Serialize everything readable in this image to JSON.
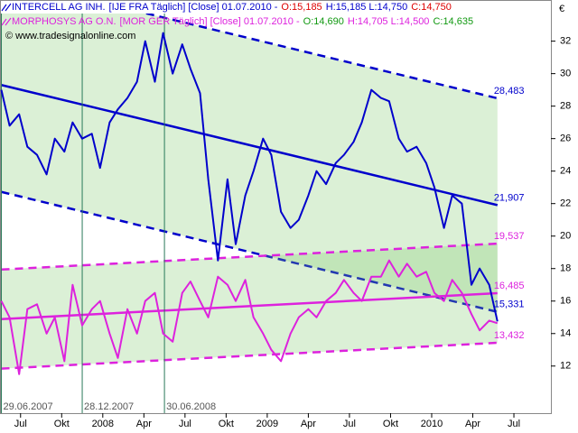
{
  "chart_data": {
    "type": "line",
    "copyright": "© www.tradesignalonline.com",
    "unit": "€",
    "x": [
      6.1,
      6.7,
      7.4,
      8.0,
      8.7,
      9.4,
      10.0,
      10.7,
      11.3,
      12.0,
      12.7,
      13.3,
      14.0,
      14.6,
      15.3,
      16.0,
      16.6,
      17.3,
      17.9,
      18.6,
      19.3,
      19.9,
      20.6,
      21.2,
      21.9,
      22.6,
      23.2,
      23.9,
      24.5,
      25.2,
      25.8,
      26.5,
      27.2,
      27.8,
      28.5,
      29.1,
      29.8,
      30.5,
      31.1,
      31.8,
      32.4,
      33.1,
      33.8,
      34.4,
      35.1,
      35.7,
      36.4,
      37.1,
      37.7,
      38.4,
      39.0,
      39.7,
      40.4,
      41.0,
      41.7,
      42.3
    ],
    "series": [
      {
        "name": "INTERCELL AG INH.",
        "color": "#0000cc",
        "details": [
          {
            "text": "[IJE FRA  Täglich] [Close] 01.07.2010 -",
            "color": "#0000cc"
          },
          {
            "text": "O:15,185",
            "color": "#dd0000"
          },
          {
            "text": "H:15,185 L:14,750",
            "color": "#0000cc"
          },
          {
            "text": "C:14,750",
            "color": "#dd0000"
          }
        ],
        "values": [
          29.0,
          26.8,
          27.5,
          25.5,
          25.0,
          23.8,
          26.0,
          25.2,
          27.0,
          26.0,
          26.3,
          24.2,
          27.0,
          27.8,
          28.5,
          29.5,
          32.0,
          29.5,
          32.5,
          30.0,
          31.8,
          30.3,
          28.8,
          23.5,
          18.5,
          23.5,
          19.5,
          22.5,
          24.0,
          26.0,
          25.0,
          21.5,
          20.5,
          21.0,
          22.5,
          24.0,
          23.2,
          24.5,
          25.0,
          25.8,
          27.0,
          29.0,
          28.5,
          28.3,
          26.0,
          25.2,
          25.5,
          24.5,
          23.0,
          20.5,
          22.5,
          22.0,
          17.0,
          18.0,
          17.0,
          14.75
        ]
      },
      {
        "name": "MORPHOSYS AG O.N.",
        "color": "#dd22dd",
        "details": [
          {
            "text": "[MOR GER  Täglich] [Close] 01.07.2010 -",
            "color": "#dd22dd"
          },
          {
            "text": "O:14,690",
            "color": "#119911"
          },
          {
            "text": "H:14,705 L:14,500",
            "color": "#dd22dd"
          },
          {
            "text": "C:14,635",
            "color": "#119911"
          }
        ],
        "values": [
          16.0,
          15.0,
          11.5,
          15.5,
          15.8,
          14.0,
          15.0,
          12.3,
          17.0,
          14.5,
          15.5,
          16.0,
          14.0,
          12.5,
          15.5,
          14.0,
          16.0,
          16.5,
          14.0,
          13.5,
          16.5,
          17.2,
          16.0,
          15.0,
          17.5,
          17.0,
          16.0,
          17.3,
          15.0,
          14.0,
          13.0,
          12.3,
          14.0,
          15.0,
          15.5,
          15.0,
          16.0,
          16.5,
          17.3,
          16.5,
          16.0,
          17.5,
          17.5,
          18.5,
          17.5,
          18.3,
          17.5,
          17.8,
          16.5,
          16.0,
          17.3,
          16.5,
          15.2,
          14.2,
          14.8,
          14.635
        ]
      }
    ],
    "channels": [
      {
        "color": "#0000cc",
        "fill": "#7fc86a",
        "x": [
          6.1,
          42.3
        ],
        "lines": [
          {
            "values": [
              35.87,
              28.483
            ],
            "value_labels": [
              null,
              "28,483"
            ],
            "dashed": true
          },
          {
            "values": [
              29.3,
              21.907
            ],
            "value_labels": [
              null,
              "21,907"
            ],
            "dashed": false
          },
          {
            "values": [
              22.72,
              15.331
            ],
            "value_labels": [
              null,
              "15,331"
            ],
            "dashed": true
          }
        ]
      },
      {
        "color": "#dd22dd",
        "fill": "#7fc86a",
        "x": [
          6.1,
          42.3
        ],
        "lines": [
          {
            "values": [
              17.94,
              19.537
            ],
            "value_labels": [
              null,
              "19,537"
            ],
            "dashed": true
          },
          {
            "values": [
              14.89,
              16.485
            ],
            "value_labels": [
              null,
              "16,485"
            ],
            "dashed": false
          },
          {
            "values": [
              11.84,
              13.432
            ],
            "value_labels": [
              null,
              "13,432"
            ],
            "dashed": true
          }
        ]
      }
    ],
    "markers": [
      {
        "x": 6.1,
        "label": "29.06.2007"
      },
      {
        "x": 12.0,
        "label": "28.12.2007"
      },
      {
        "x": 18.0,
        "label": "30.06.2008"
      }
    ],
    "xlim": [
      6,
      46.2
    ],
    "xticks": [
      {
        "value": 7.5,
        "label": "Jul"
      },
      {
        "value": 10.5,
        "label": "Okt"
      },
      {
        "value": 13.5,
        "label": "2008"
      },
      {
        "value": 16.5,
        "label": "Apr"
      },
      {
        "value": 19.5,
        "label": "Jul"
      },
      {
        "value": 22.5,
        "label": "Okt"
      },
      {
        "value": 25.5,
        "label": "2009"
      },
      {
        "value": 28.5,
        "label": "Apr"
      },
      {
        "value": 31.5,
        "label": "Jul"
      },
      {
        "value": 34.5,
        "label": "Okt"
      },
      {
        "value": 37.5,
        "label": "2010"
      },
      {
        "value": 40.5,
        "label": "Apr"
      },
      {
        "value": 43.5,
        "label": "Jul"
      }
    ],
    "ylim": [
      9.1,
      33.7
    ],
    "yticks": [
      12,
      14,
      16,
      18,
      20,
      22,
      24,
      26,
      28,
      30,
      32
    ]
  }
}
